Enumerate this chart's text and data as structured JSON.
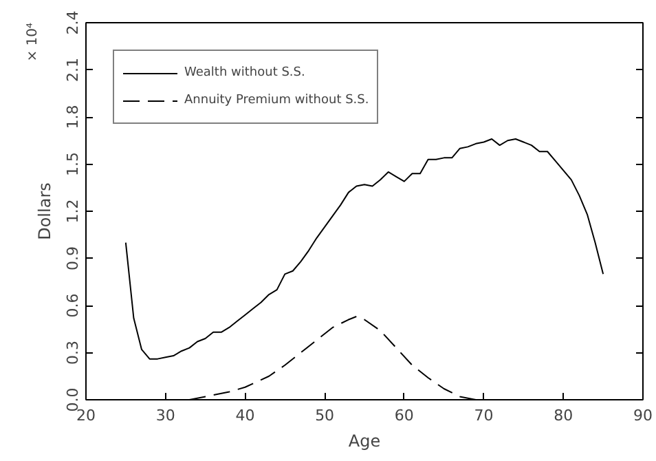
{
  "chart_data": {
    "type": "line",
    "xlabel": "Age",
    "ylabel": "Dollars",
    "annotations": [
      "× 10⁴"
    ],
    "xlim": [
      20,
      90
    ],
    "xticks": [
      20,
      30,
      40,
      50,
      60,
      70,
      80,
      90
    ],
    "ylim": [
      0,
      2.4
    ],
    "yticks": [
      {
        "value": 0,
        "label": "0.0"
      },
      0.3,
      0.6,
      0.9,
      1.2,
      1.5,
      1.8,
      2.1,
      2.4
    ],
    "grid": false,
    "legend": "top left",
    "series": [
      {
        "name": "Wealth without S.S.",
        "color": "#000000",
        "line_style": "solid",
        "x": [
          25,
          26,
          27,
          28,
          29,
          30,
          31,
          32,
          33,
          34,
          35,
          36,
          37,
          38,
          39,
          40,
          41,
          42,
          43,
          44,
          45,
          46,
          47,
          48,
          49,
          50,
          51,
          52,
          53,
          54,
          55,
          56,
          57,
          58,
          59,
          60,
          61,
          62,
          63,
          64,
          65,
          66,
          67,
          68,
          69,
          70,
          71,
          72,
          73,
          74,
          75,
          76,
          77,
          78,
          79,
          80,
          81,
          82,
          83,
          84,
          85
        ],
        "values": [
          1.0,
          0.52,
          0.32,
          0.26,
          0.26,
          0.27,
          0.28,
          0.31,
          0.33,
          0.37,
          0.39,
          0.43,
          0.43,
          0.46,
          0.5,
          0.54,
          0.58,
          0.62,
          0.67,
          0.7,
          0.8,
          0.82,
          0.88,
          0.95,
          1.03,
          1.1,
          1.17,
          1.24,
          1.32,
          1.36,
          1.37,
          1.36,
          1.4,
          1.45,
          1.42,
          1.39,
          1.44,
          1.44,
          1.53,
          1.53,
          1.54,
          1.54,
          1.6,
          1.61,
          1.63,
          1.64,
          1.66,
          1.62,
          1.65,
          1.66,
          1.64,
          1.62,
          1.58,
          1.58,
          1.52,
          1.46,
          1.4,
          1.3,
          1.18,
          1.0,
          0.8
        ]
      },
      {
        "name": "Annuity Premium without S.S.",
        "color": "#000000",
        "line_style": "dashed",
        "x": [
          33,
          35,
          38,
          40,
          43,
          45,
          47,
          49,
          51,
          53,
          54,
          55,
          57,
          59,
          61,
          63,
          65,
          67,
          69,
          72
        ],
        "values": [
          0,
          0.02,
          0.05,
          0.08,
          0.15,
          0.22,
          0.3,
          0.38,
          0.46,
          0.51,
          0.53,
          0.51,
          0.44,
          0.33,
          0.22,
          0.14,
          0.07,
          0.02,
          0,
          0
        ]
      }
    ]
  }
}
